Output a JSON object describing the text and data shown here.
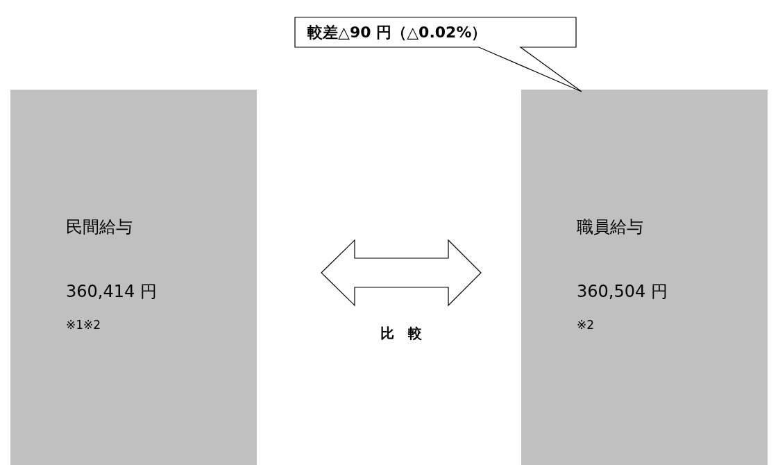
{
  "chart_data": {
    "type": "bar",
    "categories": [
      "民間給与",
      "職員給与"
    ],
    "values": [
      360414,
      360504
    ],
    "colors": [
      "#c0c0c0",
      "#c0c0c0"
    ],
    "value_labels": [
      "360,414 円",
      "360,504 円"
    ],
    "annotations": [
      "較差△90 円（△0.02%）",
      "※1※2",
      "※2",
      "比　較"
    ]
  }
}
